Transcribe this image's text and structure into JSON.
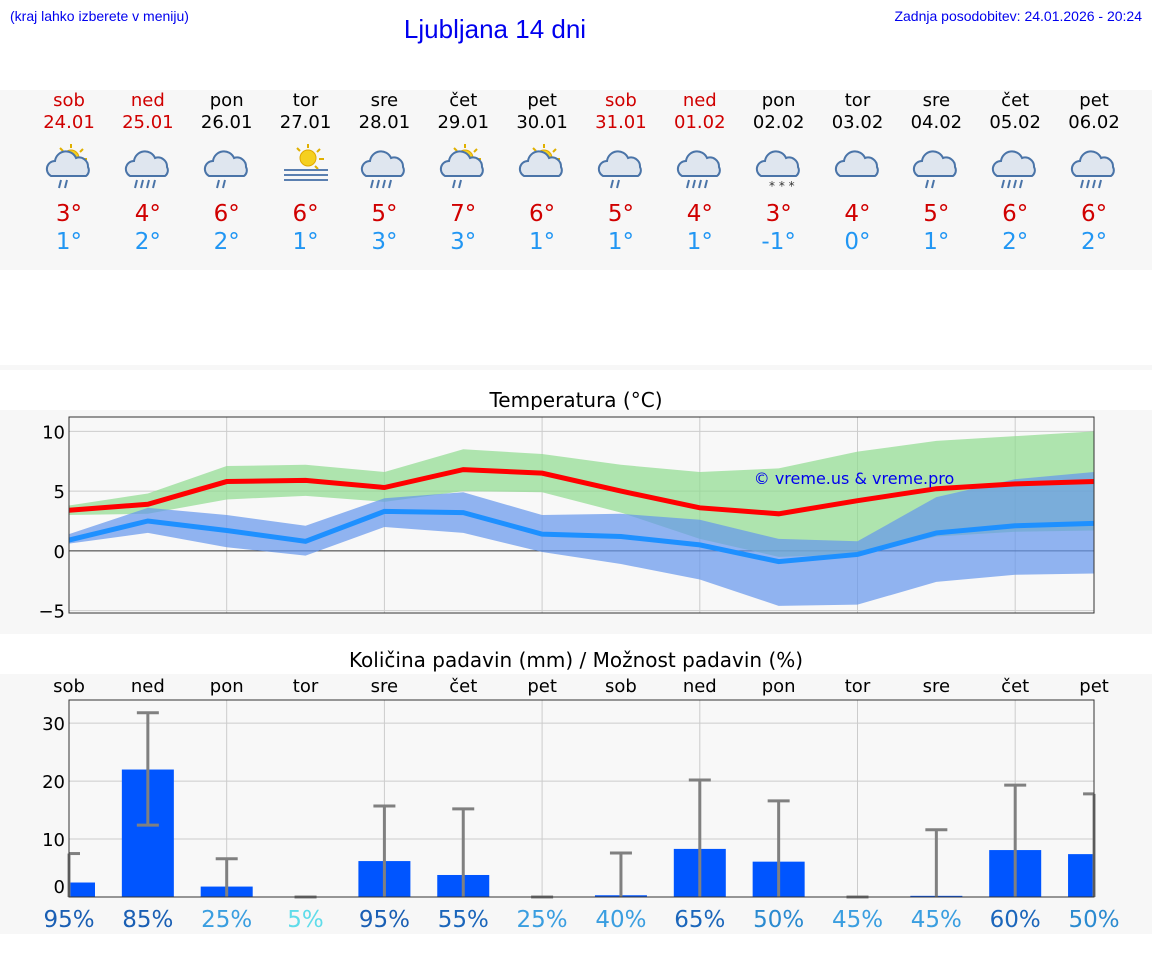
{
  "header": {
    "note": "(kraj lahko izberete v meniju)",
    "title": "Ljubljana 14 dni",
    "updated": "Zadnja posodobitev: 24.01.2026 - 20:24"
  },
  "days": [
    {
      "name": "sob",
      "date": "24.01",
      "weekend": true,
      "icon": "sun-cloud-rain-icon",
      "max": "3°",
      "min": "1°"
    },
    {
      "name": "ned",
      "date": "25.01",
      "weekend": true,
      "icon": "cloud-heavy-rain-icon",
      "max": "4°",
      "min": "2°"
    },
    {
      "name": "pon",
      "date": "26.01",
      "weekend": false,
      "icon": "cloud-rain-icon",
      "max": "6°",
      "min": "2°"
    },
    {
      "name": "tor",
      "date": "27.01",
      "weekend": false,
      "icon": "sun-fog-icon",
      "max": "6°",
      "min": "1°"
    },
    {
      "name": "sre",
      "date": "28.01",
      "weekend": false,
      "icon": "cloud-heavy-rain-icon",
      "max": "5°",
      "min": "3°"
    },
    {
      "name": "čet",
      "date": "29.01",
      "weekend": false,
      "icon": "sun-cloud-rain-icon",
      "max": "7°",
      "min": "3°"
    },
    {
      "name": "pet",
      "date": "30.01",
      "weekend": false,
      "icon": "sun-cloud-icon",
      "max": "6°",
      "min": "1°"
    },
    {
      "name": "sob",
      "date": "31.01",
      "weekend": true,
      "icon": "cloud-rain-icon",
      "max": "5°",
      "min": "1°"
    },
    {
      "name": "ned",
      "date": "01.02",
      "weekend": true,
      "icon": "cloud-heavy-rain-icon",
      "max": "4°",
      "min": "1°"
    },
    {
      "name": "pon",
      "date": "02.02",
      "weekend": false,
      "icon": "cloud-snow-icon",
      "max": "3°",
      "min": "-1°"
    },
    {
      "name": "tor",
      "date": "03.02",
      "weekend": false,
      "icon": "cloud-icon",
      "max": "4°",
      "min": "0°"
    },
    {
      "name": "sre",
      "date": "04.02",
      "weekend": false,
      "icon": "cloud-rain-icon",
      "max": "5°",
      "min": "1°"
    },
    {
      "name": "čet",
      "date": "05.02",
      "weekend": false,
      "icon": "cloud-heavy-rain-icon",
      "max": "6°",
      "min": "2°"
    },
    {
      "name": "pet",
      "date": "06.02",
      "weekend": false,
      "icon": "cloud-heavy-rain-icon",
      "max": "6°",
      "min": "2°"
    }
  ],
  "chart_data": [
    {
      "type": "line",
      "title": "Temperatura (°C)",
      "watermark": "© vreme.us & vreme.pro",
      "ylim": [
        -5.2,
        11.2
      ],
      "yticks": [
        "10",
        "5",
        "0",
        "−5"
      ],
      "ytick_values": [
        10,
        5,
        0,
        -5
      ],
      "series": [
        {
          "name": "max",
          "color": "#ff0000",
          "values": [
            3.4,
            3.9,
            5.8,
            5.9,
            5.3,
            6.8,
            6.5,
            5.0,
            3.6,
            3.1,
            4.2,
            5.2,
            5.6,
            5.8
          ],
          "band": [
            [
              3.0,
              3.8
            ],
            [
              3.1,
              4.8
            ],
            [
              4.3,
              7.1
            ],
            [
              4.6,
              7.2
            ],
            [
              4.1,
              6.6
            ],
            [
              5.0,
              8.5
            ],
            [
              4.9,
              8.1
            ],
            [
              3.2,
              7.2
            ],
            [
              1.0,
              6.6
            ],
            [
              -0.5,
              6.9
            ],
            [
              -0.3,
              8.3
            ],
            [
              1.2,
              9.2
            ],
            [
              1.6,
              9.6
            ],
            [
              1.7,
              10.0
            ]
          ],
          "band_color": "#8fdc8f"
        },
        {
          "name": "min",
          "color": "#1e90ff",
          "values": [
            0.9,
            2.5,
            1.7,
            0.8,
            3.3,
            3.2,
            1.4,
            1.2,
            0.5,
            -0.9,
            -0.3,
            1.5,
            2.1,
            2.3
          ],
          "band": [
            [
              0.6,
              1.4
            ],
            [
              1.5,
              3.6
            ],
            [
              0.3,
              3.0
            ],
            [
              -0.4,
              2.1
            ],
            [
              2.0,
              4.4
            ],
            [
              1.5,
              4.9
            ],
            [
              -0.1,
              3.0
            ],
            [
              -1.1,
              3.1
            ],
            [
              -2.4,
              2.6
            ],
            [
              -4.6,
              1.0
            ],
            [
              -4.5,
              0.8
            ],
            [
              -2.6,
              4.5
            ],
            [
              -2.0,
              6.0
            ],
            [
              -1.9,
              6.6
            ]
          ],
          "band_color": "#6495ed"
        }
      ]
    },
    {
      "type": "bar",
      "title": "Količina padavin (mm) / Možnost padavin (%)",
      "categories": [
        "sob",
        "ned",
        "pon",
        "tor",
        "sre",
        "čet",
        "pet",
        "sob",
        "ned",
        "pon",
        "tor",
        "sre",
        "čet",
        "pet"
      ],
      "ylim": [
        0,
        34
      ],
      "yticks": [
        "30",
        "20",
        "10",
        "0"
      ],
      "ytick_values": [
        30,
        20,
        10,
        0
      ],
      "values": [
        2.5,
        22,
        1.8,
        0,
        6.2,
        3.8,
        0,
        0.3,
        8.3,
        6.1,
        0,
        0.2,
        8.1,
        7.4
      ],
      "err_low": [
        0,
        12.4,
        0,
        0,
        0,
        0,
        0,
        0,
        0,
        0,
        0,
        0,
        0,
        0
      ],
      "err_high": [
        7.5,
        31.8,
        6.6,
        0,
        15.7,
        15.2,
        0,
        7.6,
        20.2,
        16.6,
        0,
        11.6,
        19.3,
        17.8
      ],
      "probability": [
        "95%",
        "85%",
        "25%",
        "5%",
        "95%",
        "55%",
        "25%",
        "40%",
        "65%",
        "50%",
        "45%",
        "45%",
        "60%",
        "50%"
      ],
      "probability_values": [
        95,
        85,
        25,
        5,
        95,
        55,
        25,
        40,
        65,
        50,
        45,
        45,
        60,
        50
      ]
    }
  ]
}
